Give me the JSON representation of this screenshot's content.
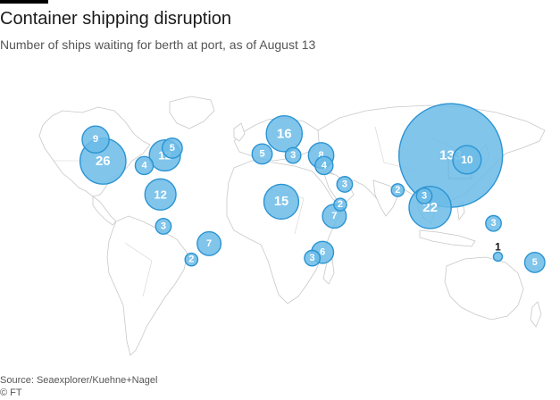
{
  "header": {
    "title": "Container shipping disruption",
    "subtitle": "Number of ships waiting for berth at port, as of August 13"
  },
  "footer": {
    "source": "Source: Seaexplorer/Kuehne+Nagel",
    "credit": "© FT"
  },
  "colors": {
    "bubble_fill": "#6bbbe8",
    "bubble_stroke": "#2c94d2",
    "land_stroke": "#c8c8c8"
  },
  "ports": [
    {
      "value": "133",
      "lon": 118,
      "lat": 37
    },
    {
      "value": "26",
      "lon": -118,
      "lat": 33
    },
    {
      "value": "22",
      "lon": 104,
      "lat": 1
    },
    {
      "value": "16",
      "lon": 5,
      "lat": 52
    },
    {
      "value": "15",
      "lon": 3,
      "lat": 5
    },
    {
      "value": "12",
      "lon": -76,
      "lat": 37
    },
    {
      "value": "12",
      "lon": -79,
      "lat": 10
    },
    {
      "value": "10",
      "lon": 129,
      "lat": 34
    },
    {
      "value": "9",
      "lon": -123,
      "lat": 48
    },
    {
      "value": "8",
      "lon": 30,
      "lat": 37
    },
    {
      "value": "7",
      "lon": 39,
      "lat": -5
    },
    {
      "value": "7",
      "lon": -46,
      "lat": -24
    },
    {
      "value": "6",
      "lon": 31,
      "lat": -30
    },
    {
      "value": "5",
      "lon": -71,
      "lat": 42
    },
    {
      "value": "5",
      "lon": -10,
      "lat": 38
    },
    {
      "value": "5",
      "lon": 175,
      "lat": -37
    },
    {
      "value": "4",
      "lon": -90,
      "lat": 30
    },
    {
      "value": "4",
      "lon": 32,
      "lat": 30
    },
    {
      "value": "3",
      "lon": 11,
      "lat": 37
    },
    {
      "value": "3",
      "lon": 46,
      "lat": 17
    },
    {
      "value": "3",
      "lon": 100,
      "lat": 9
    },
    {
      "value": "3",
      "lon": 147,
      "lat": -10
    },
    {
      "value": "3",
      "lon": -77,
      "lat": -12
    },
    {
      "value": "3",
      "lon": 24,
      "lat": -34
    },
    {
      "value": "2",
      "lon": 43,
      "lat": 3
    },
    {
      "value": "2",
      "lon": 82,
      "lat": 13
    },
    {
      "value": "2",
      "lon": -58,
      "lat": -35
    },
    {
      "value": "1",
      "lon": 150,
      "lat": -33
    }
  ]
}
